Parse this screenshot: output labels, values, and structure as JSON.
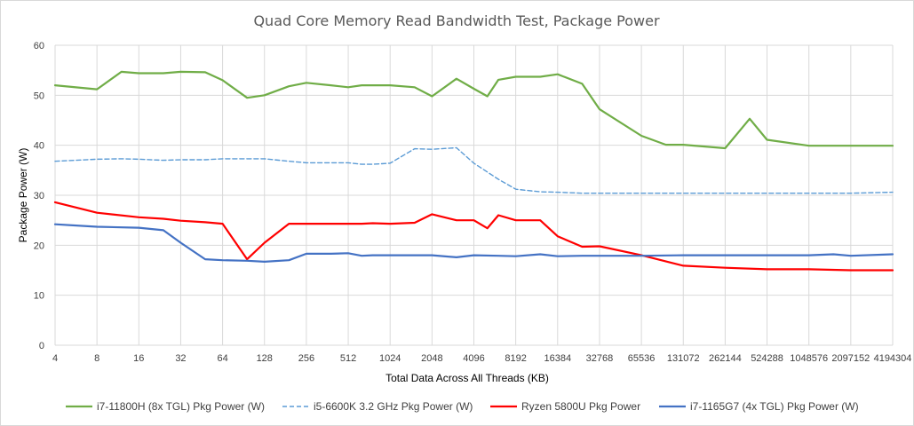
{
  "chart_data": {
    "type": "line",
    "title": "Quad Core Memory Read Bandwidth Test, Package Power",
    "xlabel": "Total Data Across All Threads (KB)",
    "ylabel": "Package Power (W)",
    "ylim": [
      0,
      60
    ],
    "yticks": [
      0,
      10,
      20,
      30,
      40,
      50,
      60
    ],
    "x_scale": "log2",
    "xticks": [
      4,
      8,
      16,
      32,
      64,
      128,
      256,
      512,
      1024,
      2048,
      4096,
      8192,
      16384,
      32768,
      65536,
      131072,
      262144,
      524288,
      1048576,
      2097152,
      4194304
    ],
    "xlim": [
      4,
      4194304
    ],
    "grid": true,
    "legend_position": "bottom",
    "series": [
      {
        "name": "i7-11800H (8x TGL) Pkg Power (W)",
        "color": "#70ad47",
        "dash": false,
        "x": [
          4,
          8,
          12,
          16,
          24,
          32,
          48,
          64,
          96,
          128,
          192,
          256,
          384,
          512,
          640,
          768,
          1024,
          1536,
          2048,
          3072,
          4096,
          5120,
          6144,
          8192,
          12288,
          16384,
          24576,
          32768,
          65536,
          98304,
          131072,
          262144,
          393216,
          524288,
          1048576,
          2097152,
          4194304
        ],
        "values": [
          52,
          51.2,
          54.7,
          54.4,
          54.4,
          54.7,
          54.6,
          53,
          49.5,
          50,
          51.8,
          52.5,
          52,
          51.6,
          52,
          52,
          52,
          51.6,
          49.8,
          53.3,
          51.3,
          49.8,
          53.1,
          53.7,
          53.7,
          54.2,
          52.3,
          47.2,
          41.9,
          40.1,
          40.1,
          39.4,
          45.3,
          41.1,
          39.9,
          39.9,
          39.9
        ]
      },
      {
        "name": "i5-6600K 3.2 GHz Pkg Power (W)",
        "color": "#5b9bd5",
        "dash": true,
        "x": [
          4,
          8,
          12,
          16,
          24,
          32,
          48,
          64,
          96,
          128,
          192,
          256,
          384,
          512,
          640,
          768,
          1024,
          1536,
          2048,
          3072,
          4096,
          6144,
          8192,
          12288,
          16384,
          24576,
          32768,
          65536,
          131072,
          262144,
          524288,
          1048576,
          2097152,
          4194304
        ],
        "values": [
          36.8,
          37.2,
          37.3,
          37.2,
          37,
          37.1,
          37.1,
          37.3,
          37.3,
          37.3,
          36.8,
          36.5,
          36.5,
          36.5,
          36.2,
          36.2,
          36.4,
          39.3,
          39.2,
          39.5,
          36.4,
          33.2,
          31.2,
          30.7,
          30.6,
          30.4,
          30.4,
          30.4,
          30.4,
          30.4,
          30.4,
          30.4,
          30.4,
          30.6
        ]
      },
      {
        "name": "Ryzen 5800U Pkg Power",
        "color": "#ff0000",
        "dash": false,
        "x": [
          4,
          8,
          16,
          24,
          32,
          48,
          64,
          96,
          128,
          192,
          256,
          384,
          512,
          640,
          768,
          1024,
          1536,
          2048,
          3072,
          4096,
          5120,
          6144,
          8192,
          12288,
          16384,
          24576,
          32768,
          65536,
          131072,
          262144,
          524288,
          1048576,
          2097152,
          4194304
        ],
        "values": [
          28.6,
          26.5,
          25.6,
          25.3,
          24.9,
          24.6,
          24.3,
          17.2,
          20.5,
          24.3,
          24.3,
          24.3,
          24.3,
          24.3,
          24.4,
          24.3,
          24.5,
          26.2,
          25,
          25,
          23.4,
          26,
          25,
          25,
          21.8,
          19.7,
          19.8,
          18,
          15.9,
          15.5,
          15.2,
          15.2,
          15,
          15
        ]
      },
      {
        "name": "i7-1165G7 (4x TGL) Pkg Power (W)",
        "color": "#4472c4",
        "dash": false,
        "x": [
          4,
          8,
          16,
          24,
          32,
          48,
          64,
          96,
          128,
          192,
          256,
          384,
          512,
          640,
          768,
          1024,
          2048,
          3072,
          4096,
          6144,
          8192,
          12288,
          16384,
          24576,
          32768,
          65536,
          131072,
          262144,
          524288,
          1048576,
          1572864,
          2097152,
          4194304
        ],
        "values": [
          24.2,
          23.7,
          23.5,
          23,
          20.5,
          17.2,
          17,
          16.9,
          16.7,
          17,
          18.3,
          18.3,
          18.4,
          17.9,
          18,
          18,
          18,
          17.6,
          18,
          17.9,
          17.8,
          18.2,
          17.8,
          17.9,
          17.9,
          17.9,
          18,
          18,
          18,
          18,
          18.2,
          17.9,
          18.2
        ]
      }
    ]
  }
}
